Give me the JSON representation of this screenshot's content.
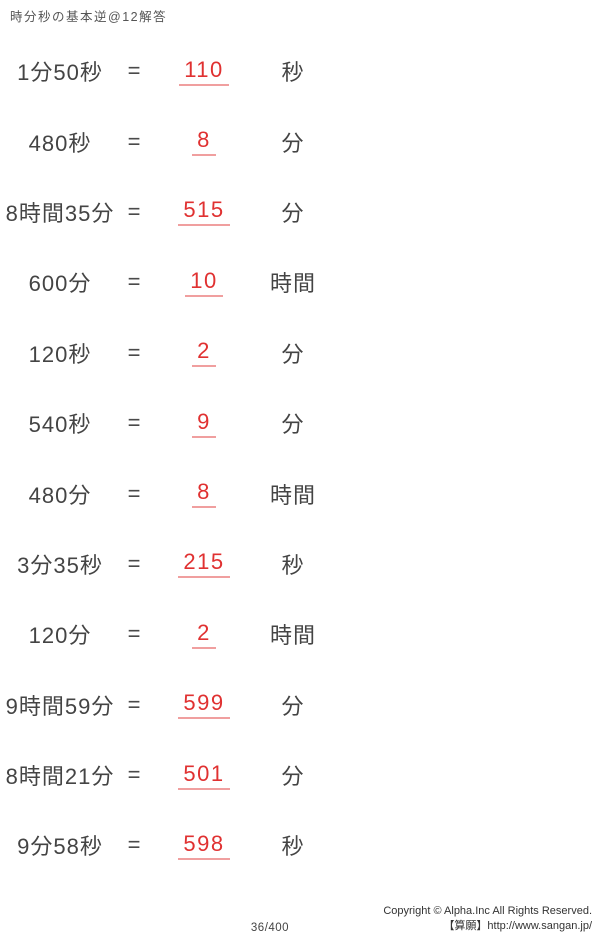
{
  "title": "時分秒の基本逆@12解答",
  "symbols": {
    "equals": "="
  },
  "colors": {
    "answer_red": "#e03131",
    "body_text": "#444444"
  },
  "problems": [
    {
      "expression": "1分50秒",
      "answer": "110",
      "unit": "秒"
    },
    {
      "expression": "480秒",
      "answer": "8",
      "unit": "分"
    },
    {
      "expression": "8時間35分",
      "answer": "515",
      "unit": "分"
    },
    {
      "expression": "600分",
      "answer": "10",
      "unit": "時間"
    },
    {
      "expression": "120秒",
      "answer": "2",
      "unit": "分"
    },
    {
      "expression": "540秒",
      "answer": "9",
      "unit": "分"
    },
    {
      "expression": "480分",
      "answer": "8",
      "unit": "時間"
    },
    {
      "expression": "3分35秒",
      "answer": "215",
      "unit": "秒"
    },
    {
      "expression": "120分",
      "answer": "2",
      "unit": "時間"
    },
    {
      "expression": "9時間59分",
      "answer": "599",
      "unit": "分"
    },
    {
      "expression": "8時間21分",
      "answer": "501",
      "unit": "分"
    },
    {
      "expression": "9分58秒",
      "answer": "598",
      "unit": "秒"
    }
  ],
  "footer": {
    "page_number": "36/400",
    "copyright": "Copyright © Alpha.Inc All Rights Reserved.",
    "site": "【算願】http://www.sangan.jp/"
  }
}
